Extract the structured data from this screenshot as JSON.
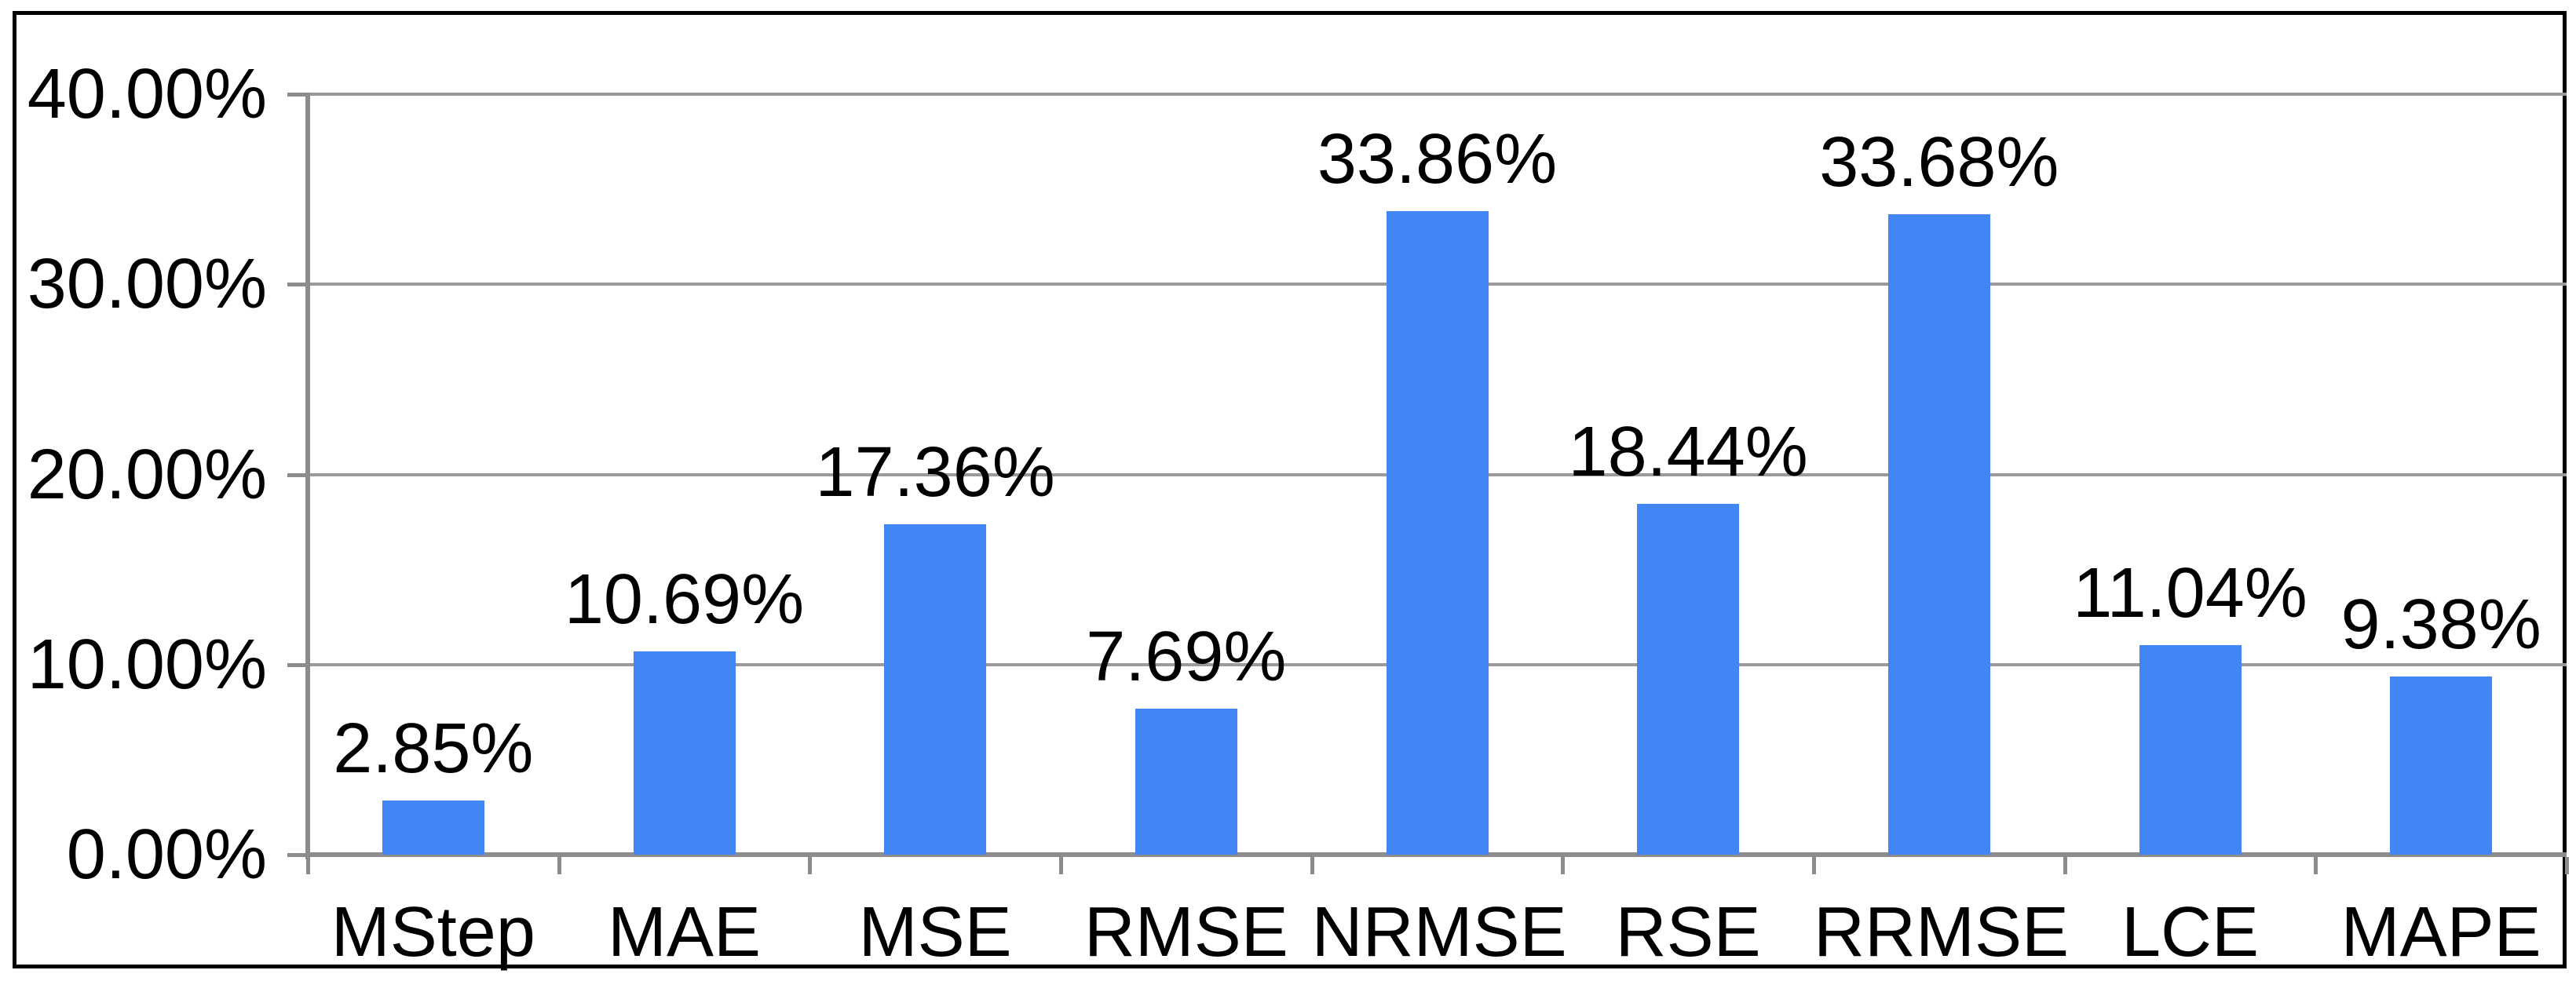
{
  "chart_data": {
    "type": "bar",
    "title": "",
    "xlabel": "",
    "ylabel": "",
    "categories": [
      "MStep",
      "MAE",
      "MSE",
      "RMSE",
      "NRMSE",
      "RSE",
      "RRMSE",
      "LCE",
      "MAPE"
    ],
    "values": [
      2.85,
      10.69,
      17.36,
      7.69,
      33.86,
      18.44,
      33.68,
      11.04,
      9.38
    ],
    "value_labels": [
      "2.85%",
      "10.69%",
      "17.36%",
      "7.69%",
      "33.86%",
      "18.44%",
      "33.68%",
      "11.04%",
      "9.38%"
    ],
    "y_axis": {
      "min": 0,
      "max": 40,
      "tick_values": [
        40,
        30,
        20,
        10,
        0
      ],
      "tick_labels": [
        "40.00%",
        "30.00%",
        "20.00%",
        "10.00%",
        "0.00%"
      ]
    },
    "grid": true,
    "legend": "none",
    "colors": {
      "bar": "#4285F4",
      "grid": "#9a9a9a",
      "axis": "#8c8c8c",
      "text": "#000000",
      "background": "#ffffff",
      "frame_border": "#000000"
    }
  }
}
